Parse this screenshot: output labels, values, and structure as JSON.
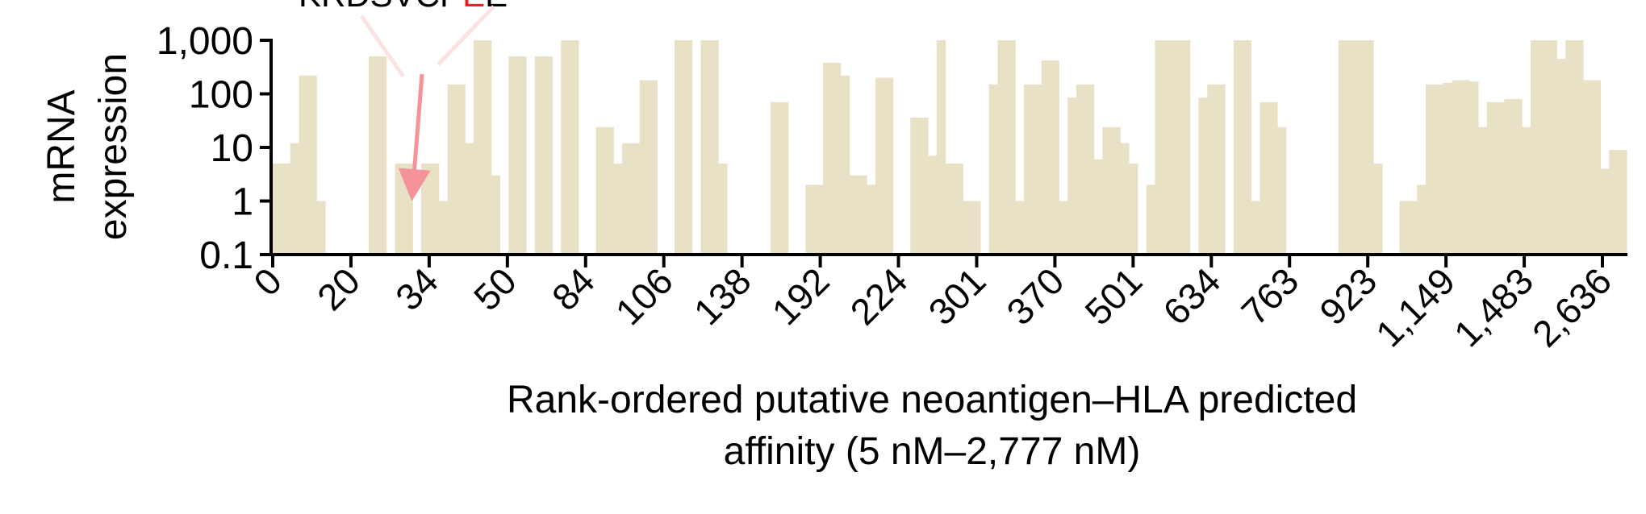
{
  "chart_data": {
    "type": "bar",
    "title": "",
    "ylabel_lines": [
      "mRNA",
      "expression"
    ],
    "xlabel_lines": [
      "Rank-ordered putative neoantigen–HLA predicted",
      "affinity (5 nM–2,777 nM)"
    ],
    "yscale": "log",
    "ylim": [
      0.1,
      1000
    ],
    "yticks": [
      {
        "value": 1000,
        "label": "1,000"
      },
      {
        "value": 100,
        "label": "100"
      },
      {
        "value": 10,
        "label": "10"
      },
      {
        "value": 1,
        "label": "1"
      },
      {
        "value": 0.1,
        "label": "0.1"
      }
    ],
    "xtick_labels": [
      "0",
      "20",
      "34",
      "50",
      "84",
      "106",
      "138",
      "192",
      "224",
      "301",
      "370",
      "501",
      "634",
      "763",
      "923",
      "1,149",
      "1,483",
      "2,636"
    ],
    "top_label": {
      "prefix": "KRDSVCP",
      "highlight": "E",
      "suffix": "E"
    },
    "colors": {
      "bar": "#e8e1c6",
      "arrow": "#f4939a",
      "highlight": "#e8211f",
      "axis": "#000000"
    },
    "values": [
      5,
      5,
      12,
      220,
      220,
      1,
      0.1,
      0.1,
      0.1,
      0.1,
      0.1,
      500,
      500,
      0.1,
      5,
      5,
      0.1,
      5,
      5,
      1,
      150,
      150,
      12,
      1000,
      1000,
      3,
      0.1,
      500,
      500,
      0.1,
      500,
      500,
      0.1,
      1000,
      1000,
      0.1,
      0.1,
      24,
      24,
      5,
      12,
      12,
      180,
      180,
      0.1,
      0.1,
      1000,
      1000,
      0.1,
      1000,
      1000,
      5,
      0.1,
      0.1,
      0.1,
      0.1,
      0.1,
      70,
      70,
      0.1,
      0.1,
      2,
      2,
      380,
      380,
      220,
      3,
      3,
      2,
      200,
      200,
      0.1,
      0.1,
      36,
      36,
      7,
      1000,
      5,
      5,
      1,
      1,
      0.1,
      150,
      1000,
      1000,
      1,
      150,
      150,
      420,
      420,
      1,
      85,
      150,
      150,
      6,
      24,
      24,
      12,
      5,
      0.1,
      2,
      1000,
      1000,
      1000,
      1000,
      0.1,
      85,
      150,
      150,
      0.1,
      1000,
      1000,
      1,
      70,
      70,
      24,
      0.1,
      0.1,
      0.1,
      0.1,
      0.1,
      0.1,
      1000,
      1000,
      1000,
      1000,
      5,
      0.1,
      0.1,
      1,
      1,
      2,
      150,
      150,
      160,
      180,
      180,
      170,
      24,
      70,
      70,
      80,
      80,
      24,
      1000,
      1000,
      1000,
      450,
      1000,
      1000,
      180,
      180,
      4,
      9,
      9
    ]
  }
}
